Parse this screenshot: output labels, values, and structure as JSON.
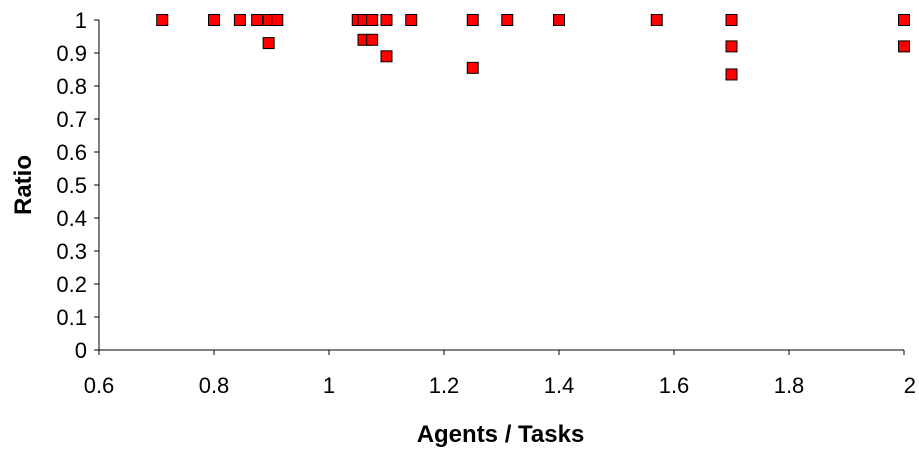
{
  "chart_data": {
    "type": "scatter",
    "xlabel": "Agents / Tasks",
    "ylabel": "Ratio",
    "xlim": [
      0.6,
      2.0
    ],
    "ylim": [
      0,
      1
    ],
    "x_ticks": [
      "0.6",
      "0.8",
      "1",
      "1.2",
      "1.4",
      "1.6",
      "1.8",
      "2"
    ],
    "y_ticks": [
      "0",
      "0.1",
      "0.2",
      "0.3",
      "0.4",
      "0.5",
      "0.6",
      "0.7",
      "0.8",
      "0.9",
      "1"
    ],
    "grid": false,
    "legend": "none",
    "marker": "square",
    "marker_color": "#ff0000",
    "points": [
      {
        "x": 0.71,
        "y": 1.0
      },
      {
        "x": 0.8,
        "y": 1.0
      },
      {
        "x": 0.845,
        "y": 1.0
      },
      {
        "x": 0.875,
        "y": 1.0
      },
      {
        "x": 0.895,
        "y": 1.0
      },
      {
        "x": 0.91,
        "y": 1.0
      },
      {
        "x": 0.895,
        "y": 0.93
      },
      {
        "x": 1.05,
        "y": 1.0
      },
      {
        "x": 1.06,
        "y": 1.0
      },
      {
        "x": 1.075,
        "y": 1.0
      },
      {
        "x": 1.1,
        "y": 1.0
      },
      {
        "x": 1.06,
        "y": 0.94
      },
      {
        "x": 1.075,
        "y": 0.94
      },
      {
        "x": 1.1,
        "y": 0.89
      },
      {
        "x": 1.143,
        "y": 1.0
      },
      {
        "x": 1.25,
        "y": 1.0
      },
      {
        "x": 1.25,
        "y": 0.855
      },
      {
        "x": 1.31,
        "y": 1.0
      },
      {
        "x": 1.4,
        "y": 1.0
      },
      {
        "x": 1.57,
        "y": 1.0
      },
      {
        "x": 1.7,
        "y": 1.0
      },
      {
        "x": 1.7,
        "y": 0.92
      },
      {
        "x": 1.7,
        "y": 0.835
      },
      {
        "x": 2.0,
        "y": 1.0
      },
      {
        "x": 2.0,
        "y": 0.92
      }
    ]
  }
}
